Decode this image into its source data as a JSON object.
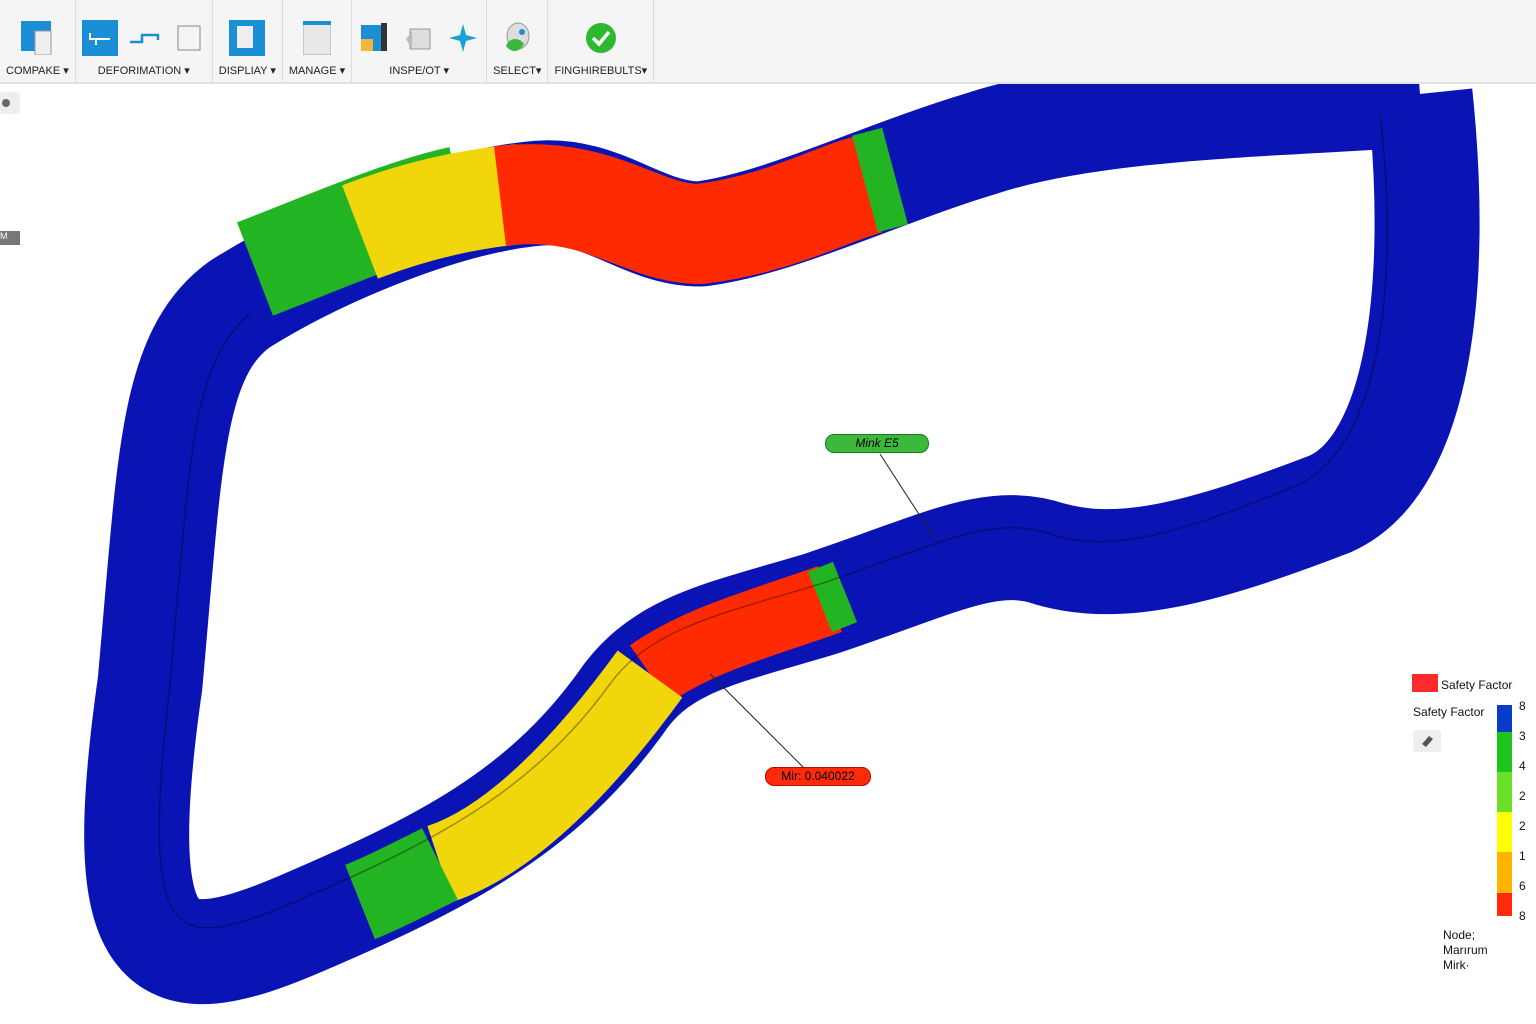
{
  "toolbar": {
    "groups": [
      {
        "label": "COMPAKE ▾",
        "icon": "compare-icon"
      },
      {
        "label": "DEFORIMATION ▾",
        "icon": "deformation-icon"
      },
      {
        "label": "DISPLIAY ▾",
        "icon": "display-icon"
      },
      {
        "label": "MANAGE ▾",
        "icon": "manage-icon"
      },
      {
        "label": "INSPE/OT ▾",
        "icon": "inspect-icon"
      },
      {
        "label": "SELECT▾",
        "icon": "select-icon"
      },
      {
        "label": "FINGHIREBULTS▾",
        "icon": "finish-results-icon"
      }
    ]
  },
  "viewport": {
    "side_tag": "M",
    "probe_max": "Mink E5",
    "probe_min": "Mir: 0.040022"
  },
  "legend": {
    "title_top": "Safety Factor",
    "title": "Safety Factor",
    "ticks": [
      "8",
      "3",
      "4",
      "2",
      "2",
      "1",
      "6",
      "8"
    ],
    "colors": [
      "#0a3ccc",
      "#1ec41e",
      "#6be02a",
      "#ffff00",
      "#ffb400",
      "#ff2a0a"
    ],
    "footer": [
      "Node;",
      "Marırum",
      "Mirk·"
    ]
  },
  "colors": {
    "blue": "#0a14b4",
    "green": "#22b422",
    "yellow": "#f2d60c",
    "red": "#ff2a00",
    "accent": "#1a8fd6"
  }
}
